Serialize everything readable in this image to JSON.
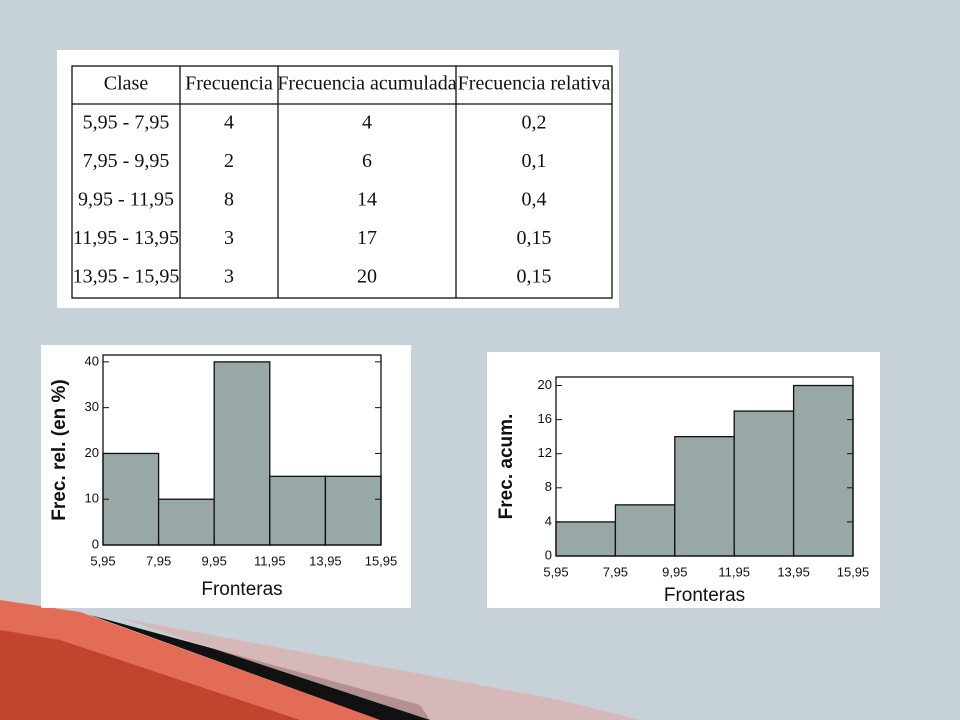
{
  "table": {
    "header": [
      "Clase",
      "Frecuencia",
      "Frecuencia acumulada",
      "Frecuencia relativa"
    ],
    "rows": [
      [
        "5,95 - 7,95",
        "4",
        "4",
        "0,2"
      ],
      [
        "7,95 - 9,95",
        "2",
        "6",
        "0,1"
      ],
      [
        "9,95 - 11,95",
        "8",
        "14",
        "0,4"
      ],
      [
        "11,95 - 13,95",
        "3",
        "17",
        "0,15"
      ],
      [
        "13,95 - 15,95",
        "3",
        "20",
        "0,15"
      ]
    ]
  },
  "chart_data": [
    {
      "type": "histogram",
      "xlabel": "Fronteras",
      "ylabel": "Frec. rel. (en %)",
      "bins": [
        5.95,
        7.95,
        9.95,
        11.95,
        13.95,
        15.95
      ],
      "values": [
        20,
        10,
        40,
        15,
        15
      ],
      "color": "#97a8a6",
      "xlim": [
        5.95,
        15.95
      ],
      "ylim": [
        0,
        41.5
      ],
      "xticks": [
        {
          "value": 5.95,
          "label": "5,95"
        },
        {
          "value": 7.95,
          "label": "7,95"
        },
        {
          "value": 9.95,
          "label": "9,95"
        },
        {
          "value": 11.95,
          "label": "11,95"
        },
        {
          "value": 13.95,
          "label": "13,95"
        },
        {
          "value": 15.95,
          "label": "15,95"
        }
      ],
      "yticks": [
        0,
        10,
        20,
        30,
        40
      ]
    },
    {
      "type": "histogram",
      "xlabel": "Fronteras",
      "ylabel": "Frec. acum.",
      "bins": [
        5.95,
        7.95,
        9.95,
        11.95,
        13.95,
        15.95
      ],
      "values": [
        4,
        6,
        14,
        17,
        20
      ],
      "color": "#97a8a6",
      "xlim": [
        5.95,
        15.95
      ],
      "ylim": [
        0,
        21
      ],
      "xticks": [
        {
          "value": 5.95,
          "label": "5,95"
        },
        {
          "value": 7.95,
          "label": "7,95"
        },
        {
          "value": 9.95,
          "label": "9,95"
        },
        {
          "value": 11.95,
          "label": "11,95"
        },
        {
          "value": 13.95,
          "label": "13,95"
        },
        {
          "value": 15.95,
          "label": "15,95"
        }
      ],
      "yticks": [
        0,
        4,
        8,
        12,
        16,
        20
      ]
    }
  ]
}
